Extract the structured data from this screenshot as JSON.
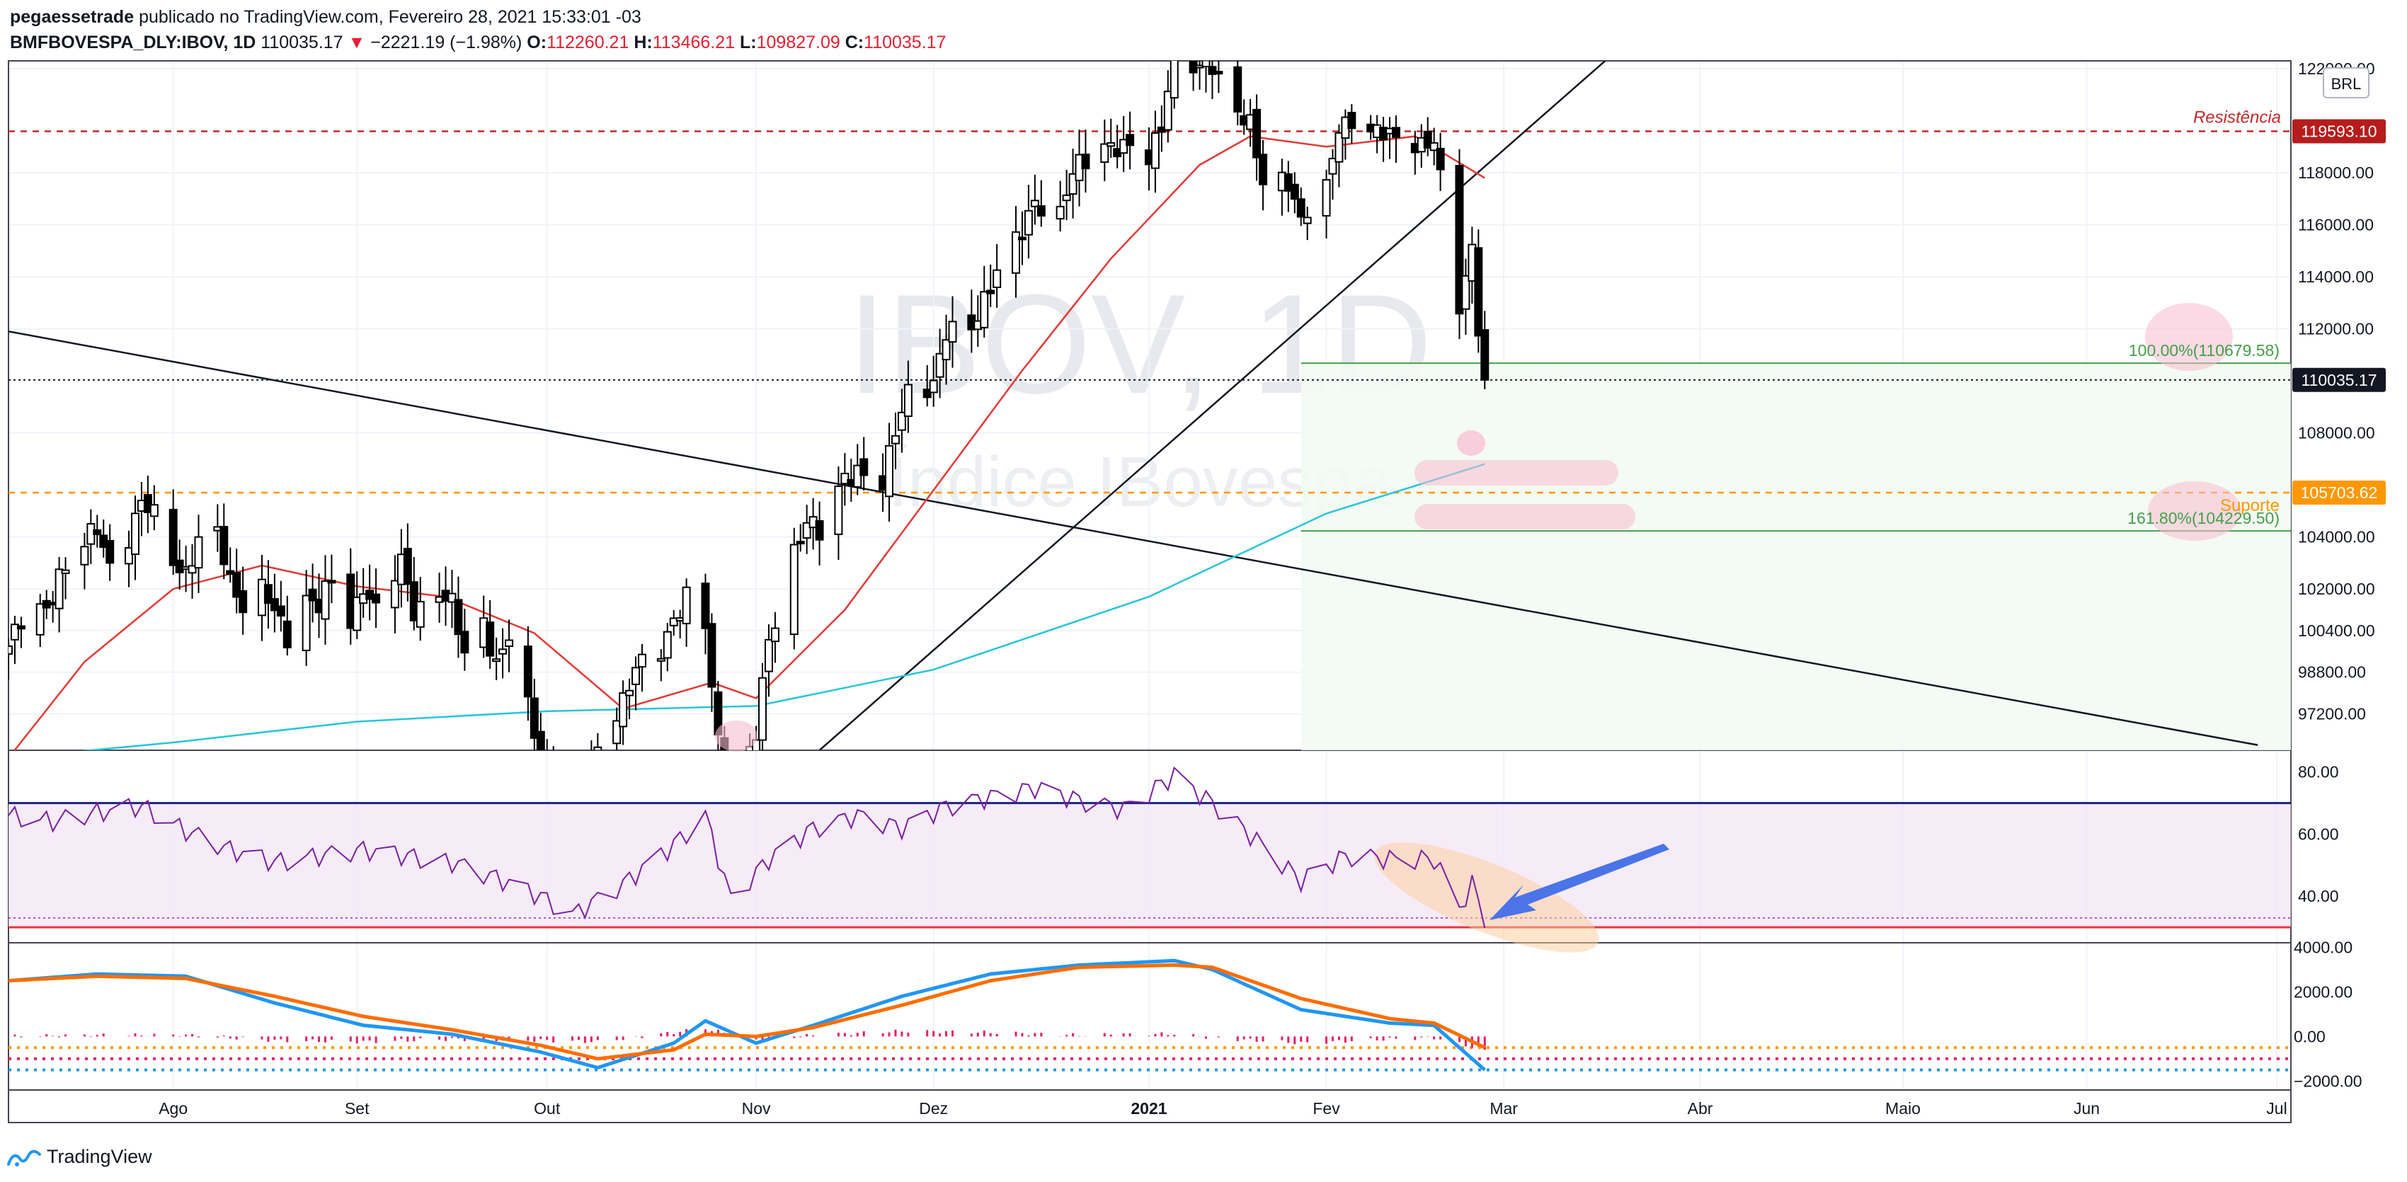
{
  "header": {
    "author": "pegaessetrade",
    "published_text": "publicado no TradingView.com, Fevereiro 28, 2021 15:33:01 -03",
    "symbol": "BMFBOVESPA_DLY:IBOV, 1D",
    "last": "110035.17",
    "change_arrow": "▼",
    "change": "−2221.19 (−1.98%)",
    "o_label": "O:",
    "o": "112260.21",
    "h_label": "H:",
    "h": "113466.21",
    "l_label": "L:",
    "l": "109827.09",
    "c_label": "C:",
    "c": "110035.17"
  },
  "watermark": {
    "line1": "IBOV, 1D",
    "line2": "Índice IBovespa"
  },
  "currency_badge": "BRL",
  "footer": {
    "brand": "TradingView"
  },
  "colors": {
    "up": "#ffffff",
    "down": "#000000",
    "ma20": "#e53935",
    "ma200": "#26c6da",
    "resistance": "#c62828",
    "support": "#ff9800",
    "fib": "#43a047",
    "rsi": "#7b1fa2",
    "macd": "#2196f3",
    "signal": "#ff6d00",
    "hist": "#e91e63"
  },
  "chart_data": {
    "type": "candlestick",
    "price_axis": {
      "ticks": [
        {
          "v": 122000,
          "label": "122000.00"
        },
        {
          "v": 118000,
          "label": "118000.00"
        },
        {
          "v": 116000,
          "label": "116000.00"
        },
        {
          "v": 114000,
          "label": "114000.00"
        },
        {
          "v": 112000,
          "label": "112000.00"
        },
        {
          "v": 108000,
          "label": "108000.00"
        },
        {
          "v": 104000,
          "label": "104000.00"
        },
        {
          "v": 102000,
          "label": "102000.00"
        },
        {
          "v": 100400,
          "label": "100400.00"
        },
        {
          "v": 98800,
          "label": "98800.00"
        },
        {
          "v": 97200,
          "label": "97200.00"
        }
      ],
      "range": [
        95800,
        122300
      ]
    },
    "rsi_axis": {
      "ticks": [
        {
          "v": 80,
          "label": "80.00"
        },
        {
          "v": 60,
          "label": "60.00"
        },
        {
          "v": 40,
          "label": "40.00"
        }
      ],
      "range": [
        25,
        87
      ],
      "upper": 70,
      "lower": 30
    },
    "macd_axis": {
      "ticks": [
        {
          "v": 4000,
          "label": "4000.00"
        },
        {
          "v": 2000,
          "label": "2000.00"
        },
        {
          "v": 0,
          "label": "0.00"
        },
        {
          "v": -2000,
          "label": "−2000.00"
        }
      ],
      "range": [
        -2400,
        4200
      ]
    },
    "time_axis": [
      {
        "date": "2020-08-03",
        "label": "Ago"
      },
      {
        "date": "2020-09-01",
        "label": "Set"
      },
      {
        "date": "2020-10-01",
        "label": "Out"
      },
      {
        "date": "2020-11-03",
        "label": "Nov"
      },
      {
        "date": "2020-12-01",
        "label": "Dez"
      },
      {
        "date": "2021-01-04",
        "label": "2021"
      },
      {
        "date": "2021-02-01",
        "label": "Fev"
      },
      {
        "date": "2021-03-01",
        "label": "Mar"
      },
      {
        "date": "2021-04-01",
        "label": "Abr"
      },
      {
        "date": "2021-05-03",
        "label": "Maio"
      },
      {
        "date": "2021-06-01",
        "label": "Jun"
      },
      {
        "date": "2021-07-01",
        "label": "Jul"
      }
    ],
    "time_range": [
      "2020-07-08",
      "2021-07-01"
    ],
    "closes": [
      [
        "2020-07-08",
        99800
      ],
      [
        "2020-07-10",
        100600
      ],
      [
        "2020-07-14",
        101300
      ],
      [
        "2020-07-16",
        102600
      ],
      [
        "2020-07-20",
        103600
      ],
      [
        "2020-07-22",
        104300
      ],
      [
        "2020-07-24",
        103000
      ],
      [
        "2020-07-27",
        104100
      ],
      [
        "2020-07-29",
        105200
      ],
      [
        "2020-07-31",
        104800
      ],
      [
        "2020-08-03",
        103200
      ],
      [
        "2020-08-05",
        102700
      ],
      [
        "2020-08-07",
        103700
      ],
      [
        "2020-08-10",
        104000
      ],
      [
        "2020-08-12",
        102400
      ],
      [
        "2020-08-14",
        101500
      ],
      [
        "2020-08-17",
        102000
      ],
      [
        "2020-08-19",
        101000
      ],
      [
        "2020-08-21",
        100200
      ],
      [
        "2020-08-24",
        101800
      ],
      [
        "2020-08-26",
        101400
      ],
      [
        "2020-08-28",
        102200
      ],
      [
        "2020-08-31",
        100600
      ],
      [
        "2020-09-02",
        102300
      ],
      [
        "2020-09-04",
        101200
      ],
      [
        "2020-09-08",
        102900
      ],
      [
        "2020-09-10",
        101200
      ],
      [
        "2020-09-14",
        102000
      ],
      [
        "2020-09-16",
        101300
      ],
      [
        "2020-09-18",
        99400
      ],
      [
        "2020-09-21",
        100800
      ],
      [
        "2020-09-23",
        99200
      ],
      [
        "2020-09-25",
        100100
      ],
      [
        "2020-09-28",
        97300
      ],
      [
        "2020-09-30",
        95500
      ],
      [
        "2020-10-02",
        95400
      ],
      [
        "2020-10-05",
        94500
      ],
      [
        "2020-10-07",
        94400
      ],
      [
        "2020-10-09",
        96100
      ],
      [
        "2020-10-13",
        97800
      ],
      [
        "2020-10-15",
        98800
      ],
      [
        "2020-10-19",
        99600
      ],
      [
        "2020-10-21",
        101000
      ],
      [
        "2020-10-23",
        101700
      ],
      [
        "2020-10-26",
        100400
      ],
      [
        "2020-10-28",
        96000
      ],
      [
        "2020-10-30",
        93900
      ],
      [
        "2020-11-03",
        96500
      ],
      [
        "2020-11-05",
        99800
      ],
      [
        "2020-11-09",
        103500
      ],
      [
        "2020-11-11",
        104800
      ],
      [
        "2020-11-13",
        104000
      ],
      [
        "2020-11-17",
        106200
      ],
      [
        "2020-11-19",
        106700
      ],
      [
        "2020-11-23",
        106000
      ],
      [
        "2020-11-25",
        107900
      ],
      [
        "2020-11-27",
        109700
      ],
      [
        "2020-12-01",
        110000
      ],
      [
        "2020-12-03",
        111700
      ],
      [
        "2020-12-07",
        112000
      ],
      [
        "2020-12-09",
        113300
      ],
      [
        "2020-12-11",
        114200
      ],
      [
        "2020-12-15",
        115600
      ],
      [
        "2020-12-17",
        117000
      ],
      [
        "2020-12-21",
        116500
      ],
      [
        "2020-12-23",
        117900
      ],
      [
        "2020-12-28",
        119200
      ],
      [
        "2020-12-30",
        119100
      ],
      [
        "2021-01-04",
        118400
      ],
      [
        "2021-01-06",
        119900
      ],
      [
        "2021-01-08",
        123000
      ],
      [
        "2021-01-12",
        121800
      ],
      [
        "2021-01-14",
        122100
      ],
      [
        "2021-01-18",
        120600
      ],
      [
        "2021-01-20",
        119800
      ],
      [
        "2021-01-22",
        117400
      ],
      [
        "2021-01-26",
        117800
      ],
      [
        "2021-01-28",
        116300
      ],
      [
        "2021-02-01",
        117200
      ],
      [
        "2021-02-03",
        119700
      ],
      [
        "2021-02-05",
        120200
      ],
      [
        "2021-02-09",
        119500
      ],
      [
        "2021-02-11",
        119300
      ],
      [
        "2021-02-18",
        119200
      ],
      [
        "2021-02-22",
        112700
      ],
      [
        "2021-02-24",
        115200
      ],
      [
        "2021-02-25",
        112300
      ],
      [
        "2021-02-26",
        110035.17
      ]
    ],
    "ma20": [
      [
        "2020-07-08",
        95500
      ],
      [
        "2020-07-20",
        99200
      ],
      [
        "2020-08-03",
        102000
      ],
      [
        "2020-08-17",
        102900
      ],
      [
        "2020-09-01",
        102100
      ],
      [
        "2020-09-15",
        101700
      ],
      [
        "2020-09-29",
        100300
      ],
      [
        "2020-10-13",
        97400
      ],
      [
        "2020-10-27",
        98400
      ],
      [
        "2020-11-03",
        97800
      ],
      [
        "2020-11-17",
        101200
      ],
      [
        "2020-12-01",
        105800
      ],
      [
        "2020-12-15",
        110400
      ],
      [
        "2020-12-29",
        114700
      ],
      [
        "2021-01-12",
        118300
      ],
      [
        "2021-01-20",
        119400
      ],
      [
        "2021-02-01",
        119000
      ],
      [
        "2021-02-15",
        119400
      ],
      [
        "2021-02-26",
        117800
      ]
    ],
    "ma200": [
      [
        "2020-07-08",
        95500
      ],
      [
        "2020-08-03",
        96100
      ],
      [
        "2020-09-01",
        96900
      ],
      [
        "2020-10-01",
        97300
      ],
      [
        "2020-11-03",
        97500
      ],
      [
        "2020-12-01",
        98900
      ],
      [
        "2021-01-04",
        101700
      ],
      [
        "2021-02-01",
        104900
      ],
      [
        "2021-02-26",
        106800
      ]
    ],
    "levels": [
      {
        "name": "Resistência",
        "value": 119593.1,
        "label": "119593.10"
      },
      {
        "name": "Suporte",
        "value": 105703.62,
        "label": "105703.62"
      }
    ],
    "fibonacci": [
      {
        "label": "100.00%(110679.58)",
        "value": 110679.58
      },
      {
        "label": "161.80%(104229.50)",
        "value": 104229.5
      }
    ],
    "last_price_label": "110035.17",
    "rsi": [
      [
        "2020-07-08",
        66
      ],
      [
        "2020-07-15",
        64
      ],
      [
        "2020-07-22",
        67
      ],
      [
        "2020-07-29",
        69
      ],
      [
        "2020-08-05",
        61
      ],
      [
        "2020-08-12",
        55
      ],
      [
        "2020-08-19",
        51
      ],
      [
        "2020-08-26",
        53
      ],
      [
        "2020-09-02",
        55
      ],
      [
        "2020-09-09",
        53
      ],
      [
        "2020-09-16",
        51
      ],
      [
        "2020-09-23",
        46
      ],
      [
        "2020-09-30",
        40
      ],
      [
        "2020-10-05",
        34
      ],
      [
        "2020-10-13",
        44
      ],
      [
        "2020-10-20",
        55
      ],
      [
        "2020-10-26",
        66
      ],
      [
        "2020-10-30",
        39
      ],
      [
        "2020-11-05",
        52
      ],
      [
        "2020-11-12",
        62
      ],
      [
        "2020-11-19",
        66
      ],
      [
        "2020-11-26",
        62
      ],
      [
        "2020-12-03",
        69
      ],
      [
        "2020-12-10",
        72
      ],
      [
        "2020-12-17",
        75
      ],
      [
        "2020-12-24",
        71
      ],
      [
        "2020-12-31",
        68
      ],
      [
        "2021-01-08",
        79
      ],
      [
        "2021-01-14",
        70
      ],
      [
        "2021-01-21",
        58
      ],
      [
        "2021-01-28",
        45
      ],
      [
        "2021-02-04",
        53
      ],
      [
        "2021-02-11",
        52
      ],
      [
        "2021-02-18",
        52
      ],
      [
        "2021-02-22",
        36
      ],
      [
        "2021-02-24",
        44
      ],
      [
        "2021-02-26",
        33
      ]
    ],
    "macd": [
      [
        "2020-07-08",
        2500
      ],
      [
        "2020-07-22",
        2800
      ],
      [
        "2020-08-05",
        2700
      ],
      [
        "2020-08-19",
        1500
      ],
      [
        "2020-09-02",
        500
      ],
      [
        "2020-09-16",
        100
      ],
      [
        "2020-09-30",
        -700
      ],
      [
        "2020-10-09",
        -1400
      ],
      [
        "2020-10-21",
        -300
      ],
      [
        "2020-10-26",
        700
      ],
      [
        "2020-11-03",
        -300
      ],
      [
        "2020-11-12",
        500
      ],
      [
        "2020-11-26",
        1800
      ],
      [
        "2020-12-10",
        2800
      ],
      [
        "2020-12-24",
        3200
      ],
      [
        "2021-01-08",
        3400
      ],
      [
        "2021-01-14",
        3000
      ],
      [
        "2021-01-28",
        1200
      ],
      [
        "2021-02-11",
        600
      ],
      [
        "2021-02-18",
        500
      ],
      [
        "2021-02-26",
        -1500
      ]
    ],
    "signal": [
      [
        "2020-07-08",
        2500
      ],
      [
        "2020-07-22",
        2700
      ],
      [
        "2020-08-05",
        2600
      ],
      [
        "2020-08-19",
        1800
      ],
      [
        "2020-09-02",
        900
      ],
      [
        "2020-09-16",
        300
      ],
      [
        "2020-09-30",
        -400
      ],
      [
        "2020-10-09",
        -1000
      ],
      [
        "2020-10-21",
        -600
      ],
      [
        "2020-10-26",
        100
      ],
      [
        "2020-11-03",
        0
      ],
      [
        "2020-11-12",
        400
      ],
      [
        "2020-11-26",
        1400
      ],
      [
        "2020-12-10",
        2500
      ],
      [
        "2020-12-24",
        3100
      ],
      [
        "2021-01-08",
        3200
      ],
      [
        "2021-01-14",
        3100
      ],
      [
        "2021-01-28",
        1700
      ],
      [
        "2021-02-11",
        800
      ],
      [
        "2021-02-18",
        600
      ],
      [
        "2021-02-26",
        -500
      ]
    ],
    "macd_levels": [
      -500,
      -1000,
      -1500
    ]
  }
}
